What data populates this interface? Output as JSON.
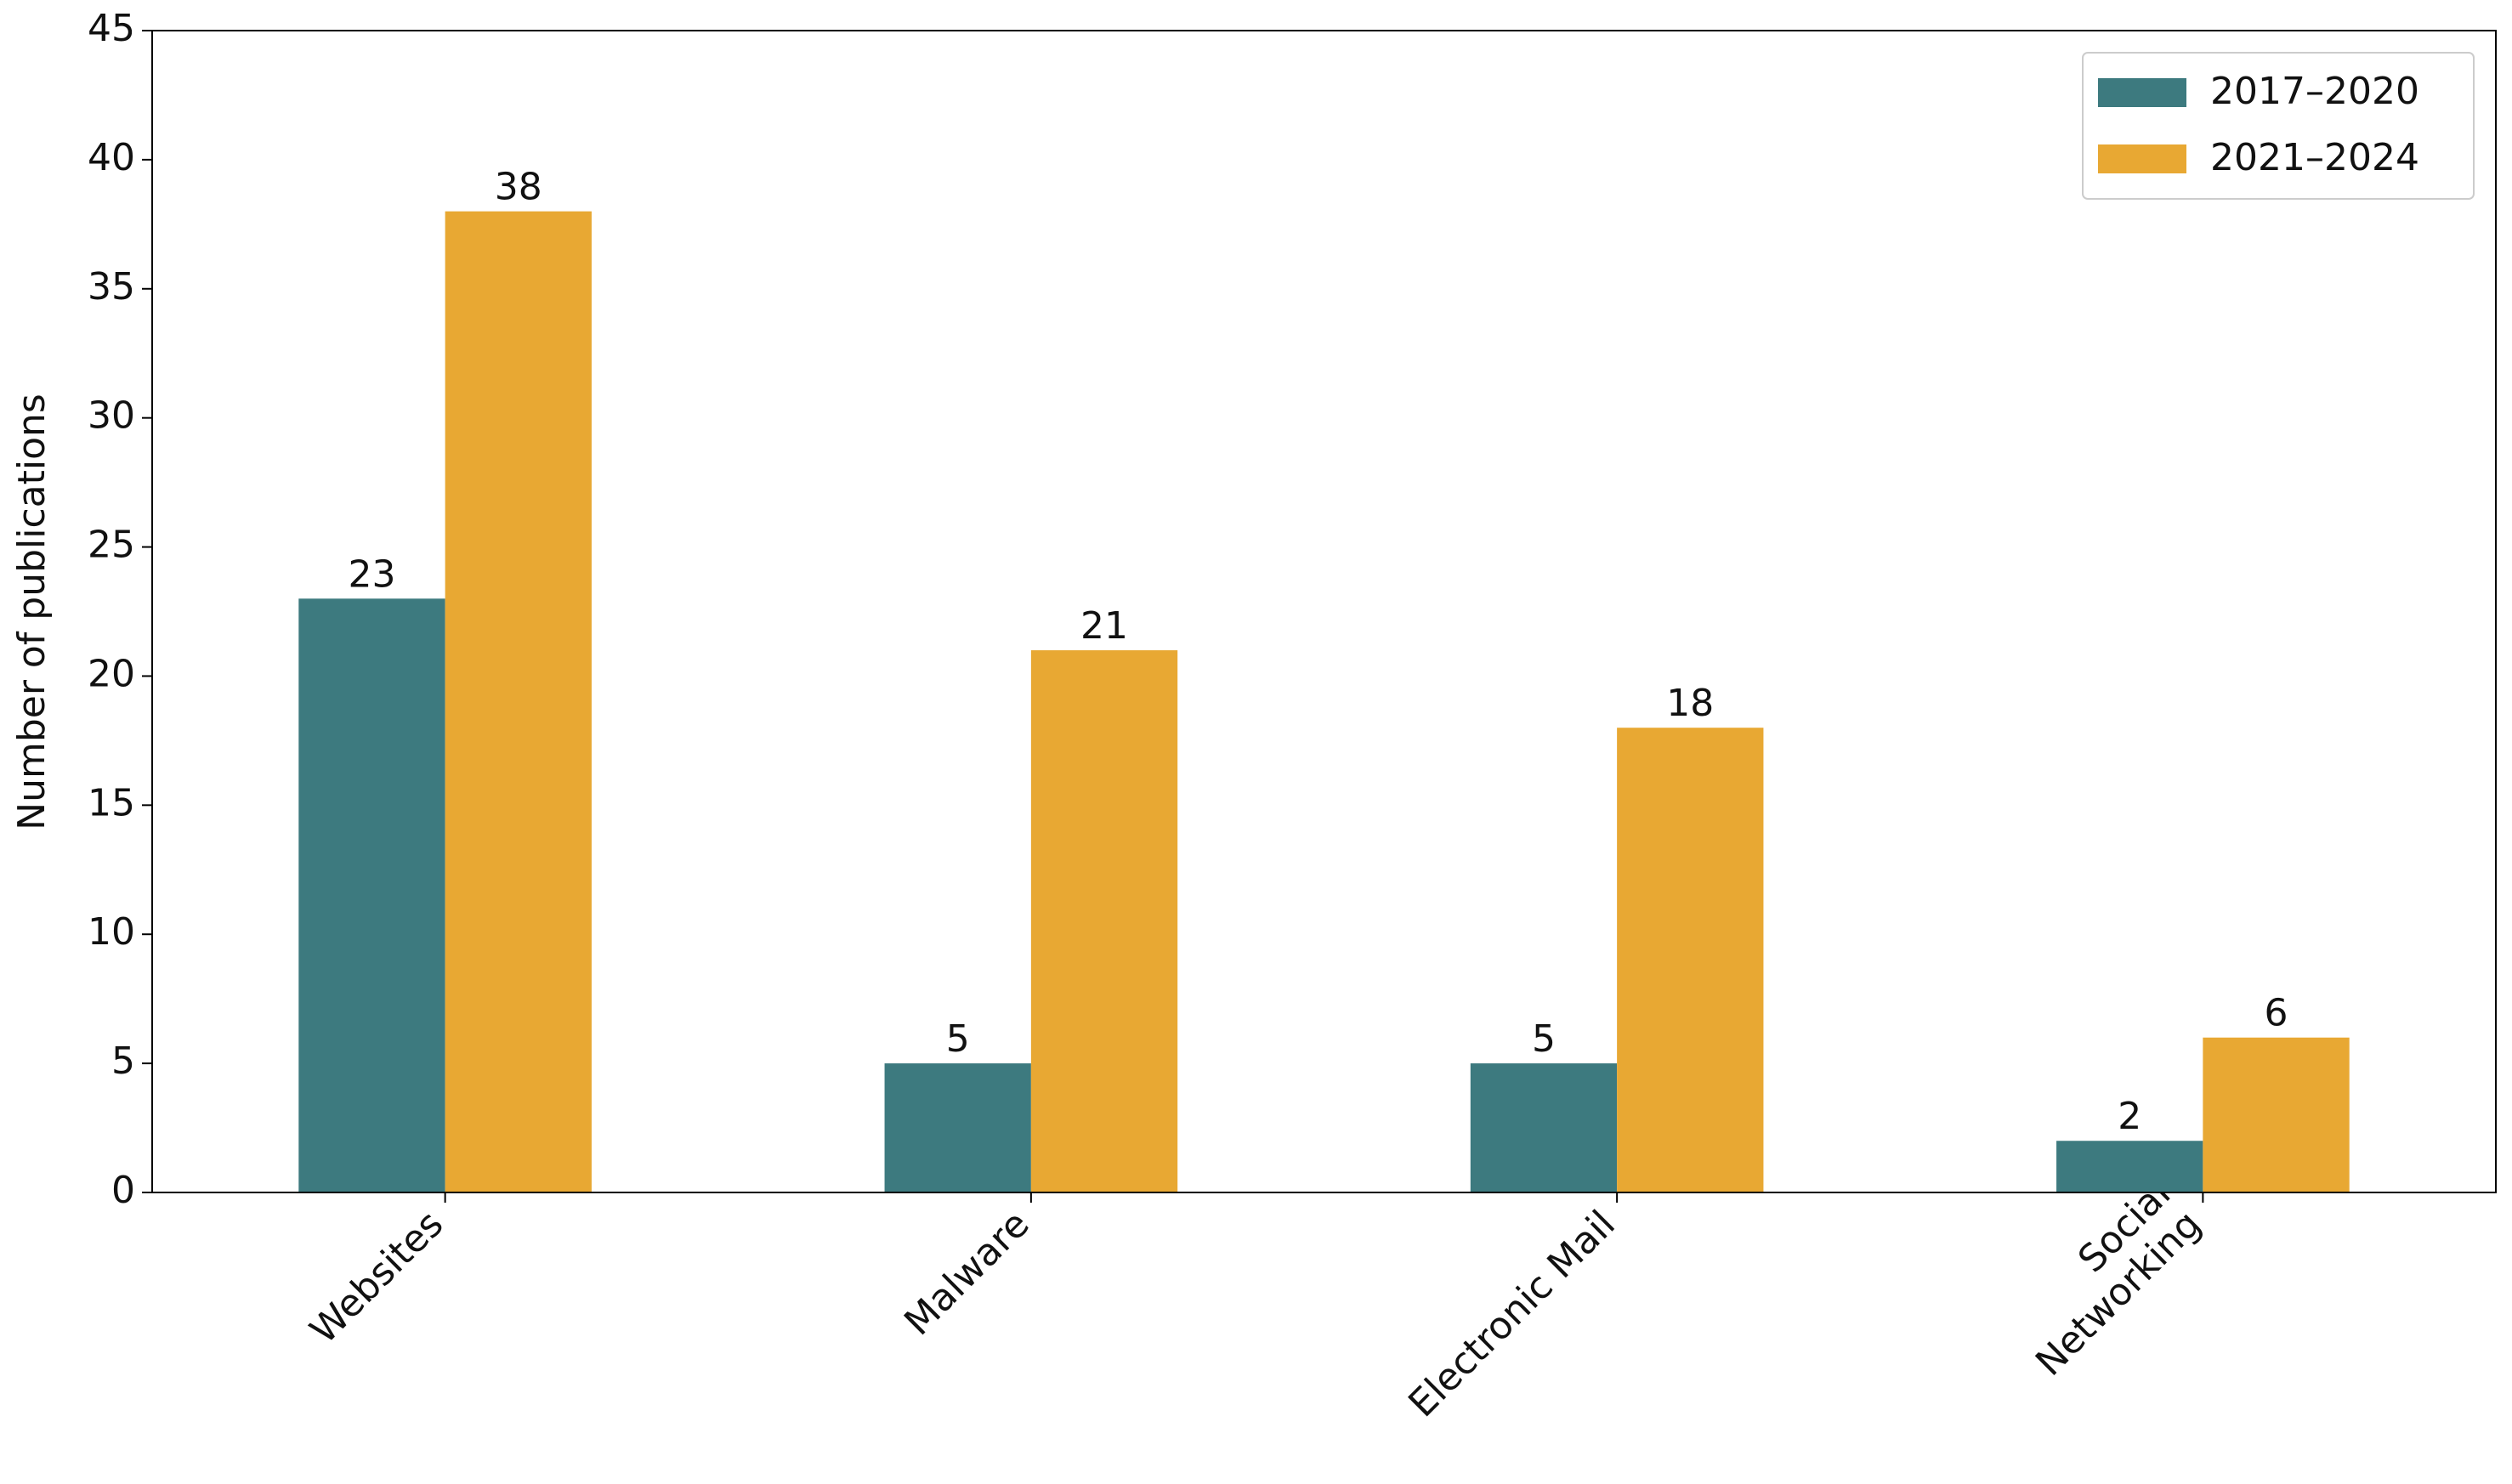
{
  "chart_data": {
    "type": "bar",
    "y_label": "Number of publications",
    "categories": [
      "Websites",
      "Malware",
      "Electronic Mail",
      "Social\nNetworking"
    ],
    "series": [
      {
        "name": "2017–2020",
        "color": "#3d7a7f",
        "values": [
          23,
          5,
          5,
          2
        ]
      },
      {
        "name": "2021–2024",
        "color": "#e8a833",
        "values": [
          38,
          21,
          18,
          6
        ]
      }
    ],
    "ylim": [
      0,
      45
    ],
    "yticks": [
      0,
      5,
      10,
      15,
      20,
      25,
      30,
      35,
      40,
      45
    ],
    "legend": "upper right",
    "grid": false
  }
}
